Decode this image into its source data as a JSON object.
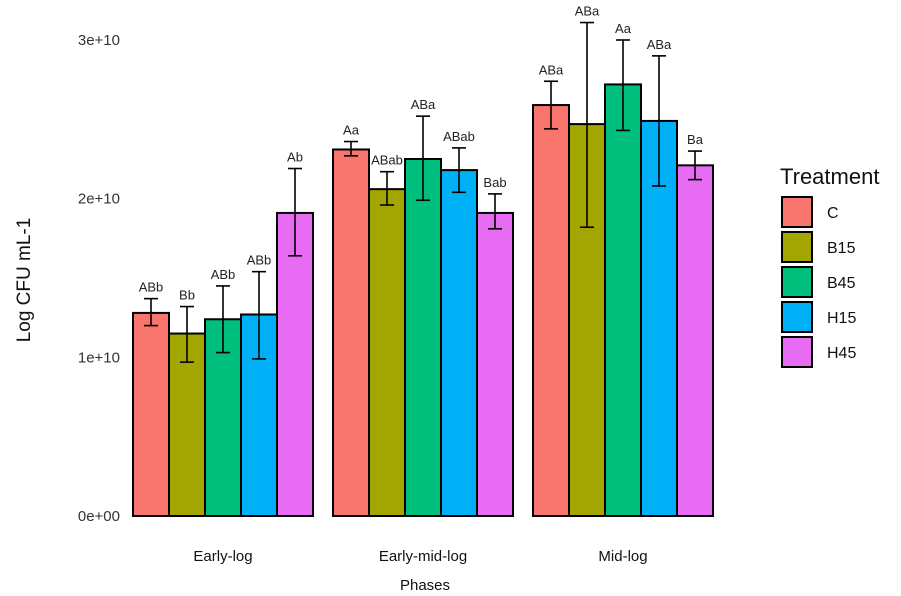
{
  "chart_data": {
    "type": "bar",
    "title": "",
    "xlabel": "Phases",
    "ylabel": "Log CFU mL-1",
    "ylim": [
      0,
      30000000000
    ],
    "y_ticks": [
      {
        "value": 0,
        "label": "0e+00"
      },
      {
        "value": 10000000000,
        "label": "1e+10"
      },
      {
        "value": 20000000000,
        "label": "2e+10"
      },
      {
        "value": 30000000000,
        "label": "3e+10"
      }
    ],
    "grid": false,
    "legend_position": "right",
    "legend_title": "Treatment",
    "categories": [
      "Early-log",
      "Early-mid-log",
      "Mid-log"
    ],
    "series": [
      {
        "name": "C",
        "color": "#F8766D",
        "values": [
          12800000000,
          23100000000,
          25900000000
        ],
        "err_low": [
          12000000000,
          22700000000,
          24400000000
        ],
        "err_high": [
          13700000000,
          23600000000,
          27400000000
        ],
        "labels": [
          "ABb",
          "Aa",
          "ABa"
        ]
      },
      {
        "name": "B15",
        "color": "#A3A500",
        "values": [
          11500000000,
          20600000000,
          24700000000
        ],
        "err_low": [
          9700000000,
          19600000000,
          18200000000
        ],
        "err_high": [
          13200000000,
          21700000000,
          31100000000
        ],
        "labels": [
          "Bb",
          "ABab",
          "ABa"
        ]
      },
      {
        "name": "B45",
        "color": "#00BF7D",
        "values": [
          12400000000,
          22500000000,
          27200000000
        ],
        "err_low": [
          10300000000,
          19900000000,
          24300000000
        ],
        "err_high": [
          14500000000,
          25200000000,
          30000000000
        ],
        "labels": [
          "ABb",
          "ABa",
          "Aa"
        ]
      },
      {
        "name": "H15",
        "color": "#00B0F6",
        "values": [
          12700000000,
          21800000000,
          24900000000
        ],
        "err_low": [
          9900000000,
          20400000000,
          20800000000
        ],
        "err_high": [
          15400000000,
          23200000000,
          29000000000
        ],
        "labels": [
          "ABb",
          "ABab",
          "ABa"
        ]
      },
      {
        "name": "H45",
        "color": "#E76BF3",
        "values": [
          19100000000,
          19100000000,
          22100000000
        ],
        "err_low": [
          16400000000,
          18100000000,
          21200000000
        ],
        "err_high": [
          21900000000,
          20300000000,
          23000000000
        ],
        "labels": [
          "Ab",
          "Bab",
          "Ba"
        ]
      }
    ]
  }
}
